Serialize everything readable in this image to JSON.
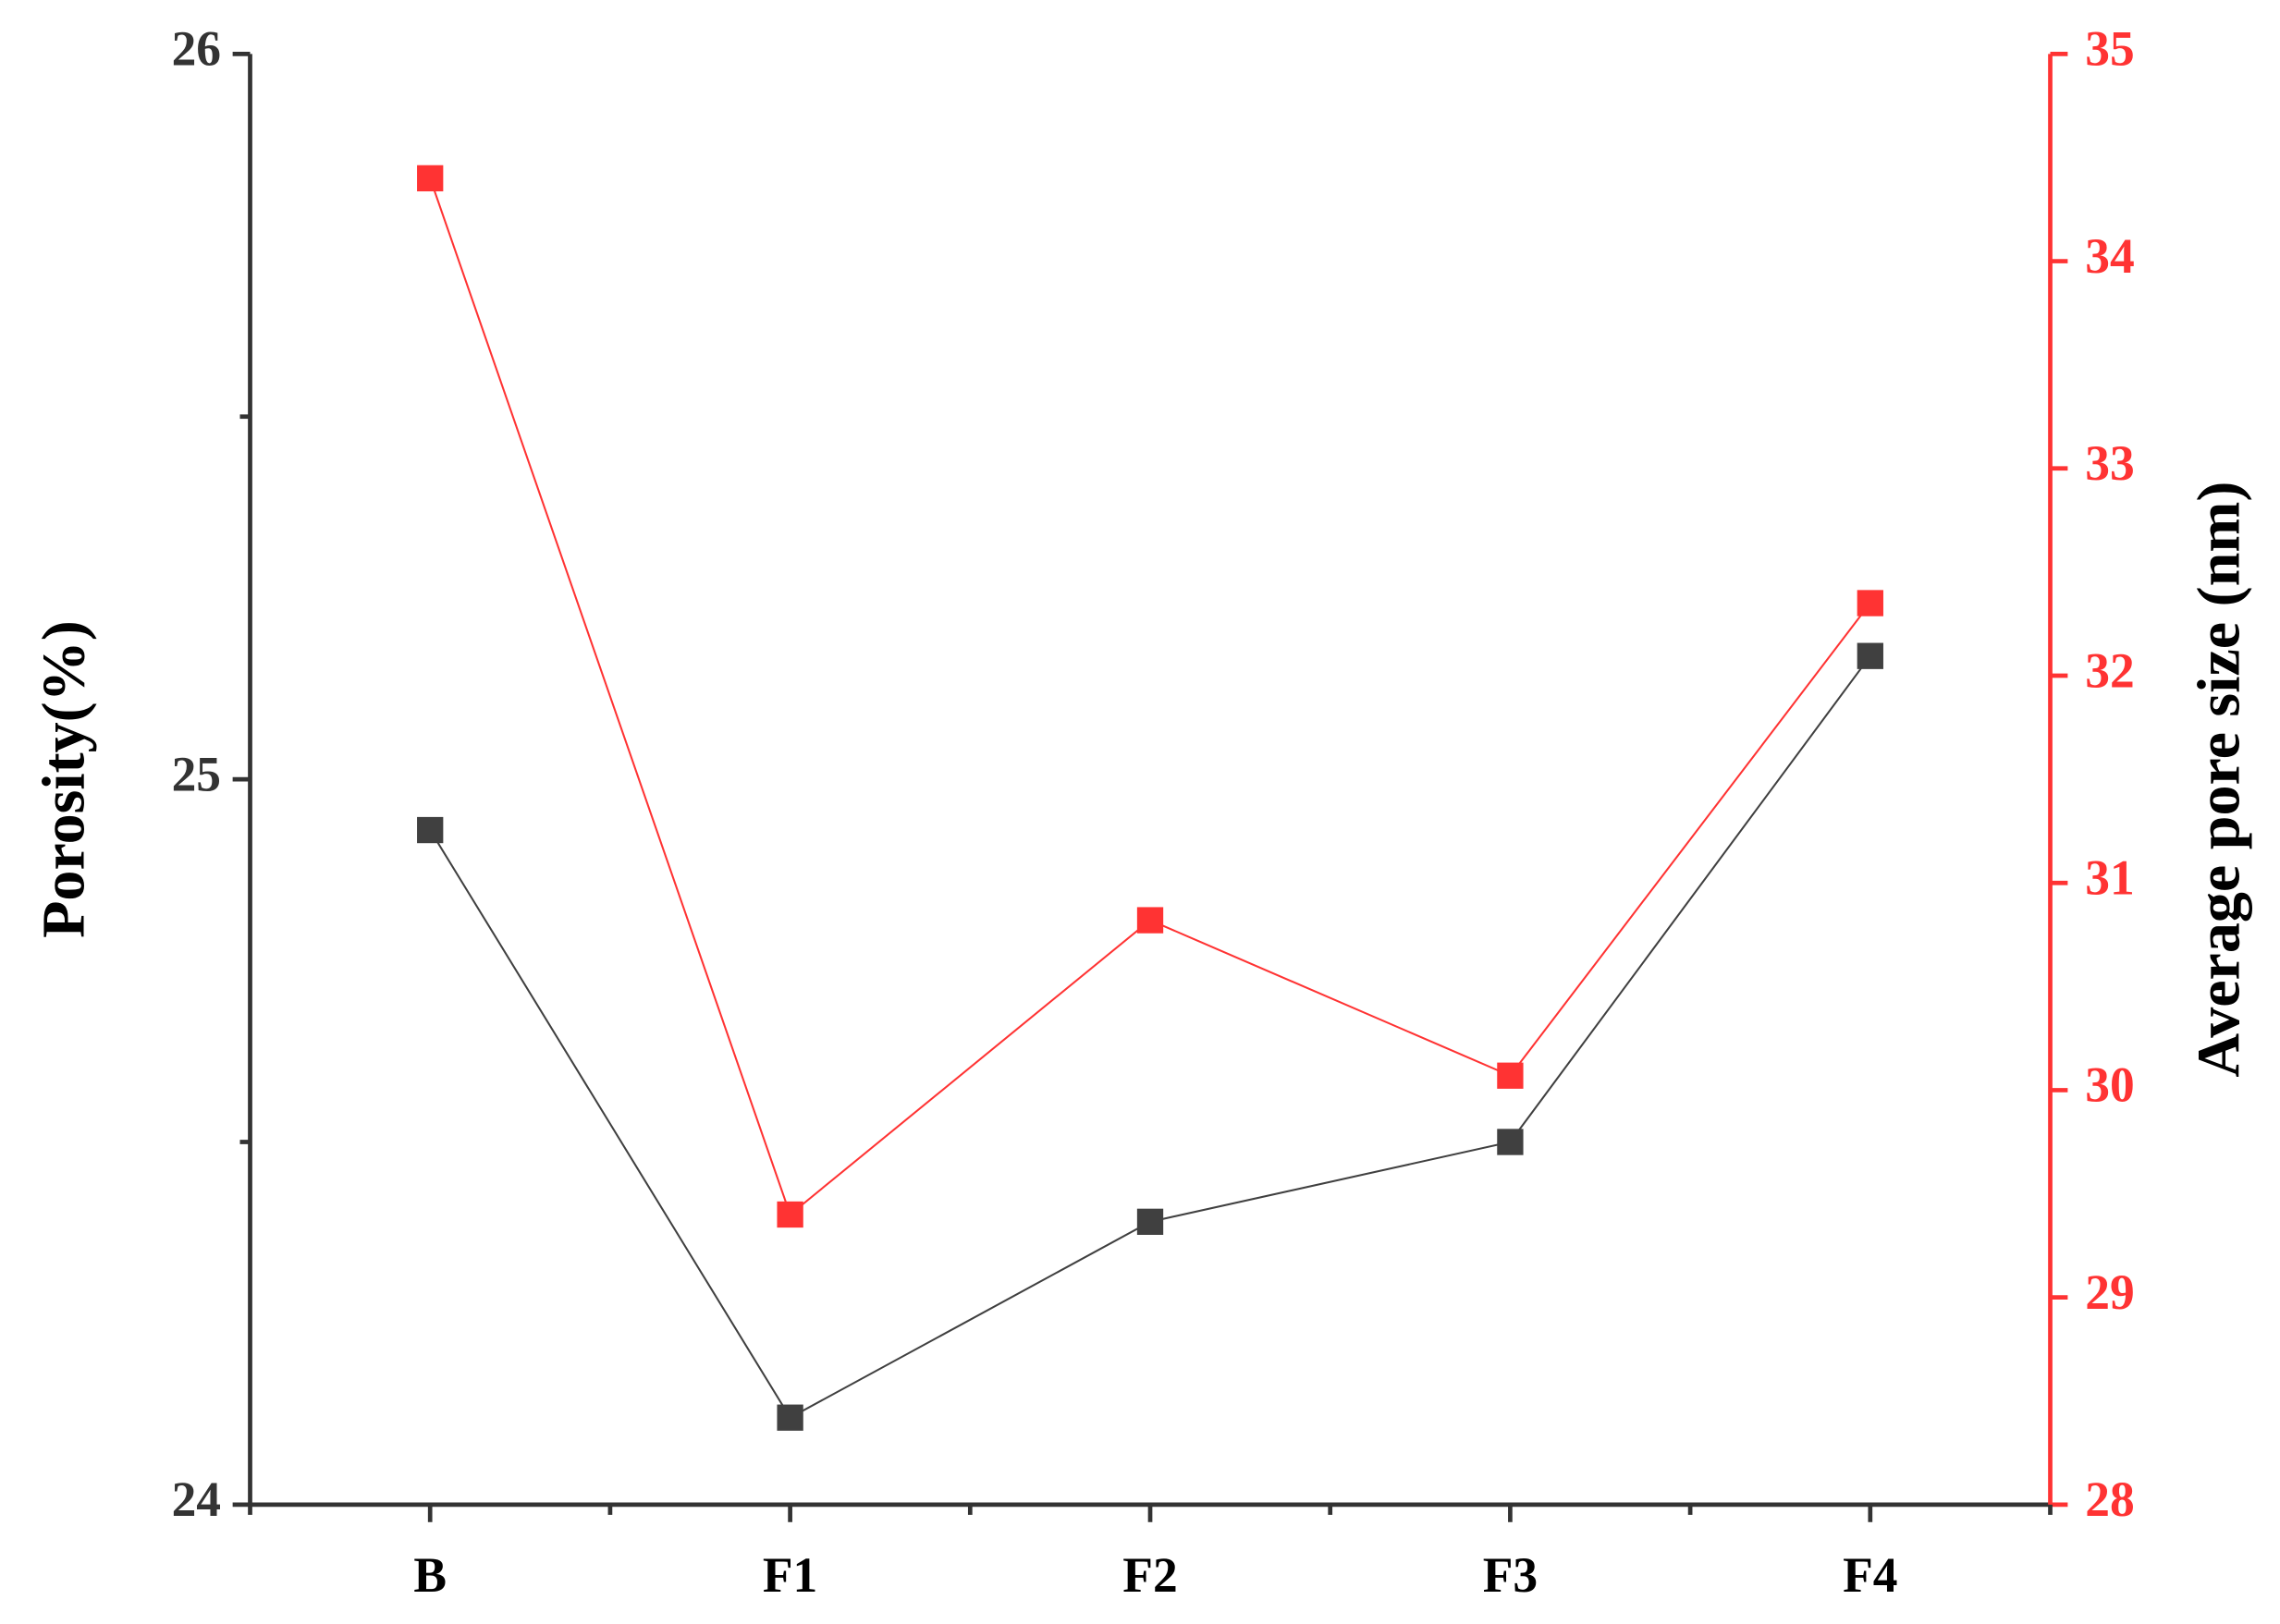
{
  "chart_data": {
    "type": "line",
    "categories": [
      "B",
      "F1",
      "F2",
      "F3",
      "F4"
    ],
    "ylabel": "Porosity(%)",
    "y2label": "Average pore size (nm)",
    "ylim": [
      24,
      26
    ],
    "yticks": [
      24,
      25,
      26
    ],
    "yminorticks": [
      24.5,
      25.5
    ],
    "y2lim": [
      28,
      35
    ],
    "y2ticks": [
      28,
      29,
      30,
      31,
      32,
      33,
      34,
      35
    ],
    "axis_color": "#333333",
    "y2_axis_color": "#ff3333",
    "series": [
      {
        "name": "Porosity",
        "color": "#404040",
        "values": [
          24.93,
          24.12,
          24.39,
          24.5,
          25.17
        ]
      },
      {
        "name": "Average pore size",
        "color": "#ff3333",
        "axis": "y2",
        "values": [
          34.4,
          29.4,
          30.82,
          30.07,
          32.35
        ]
      }
    ]
  }
}
